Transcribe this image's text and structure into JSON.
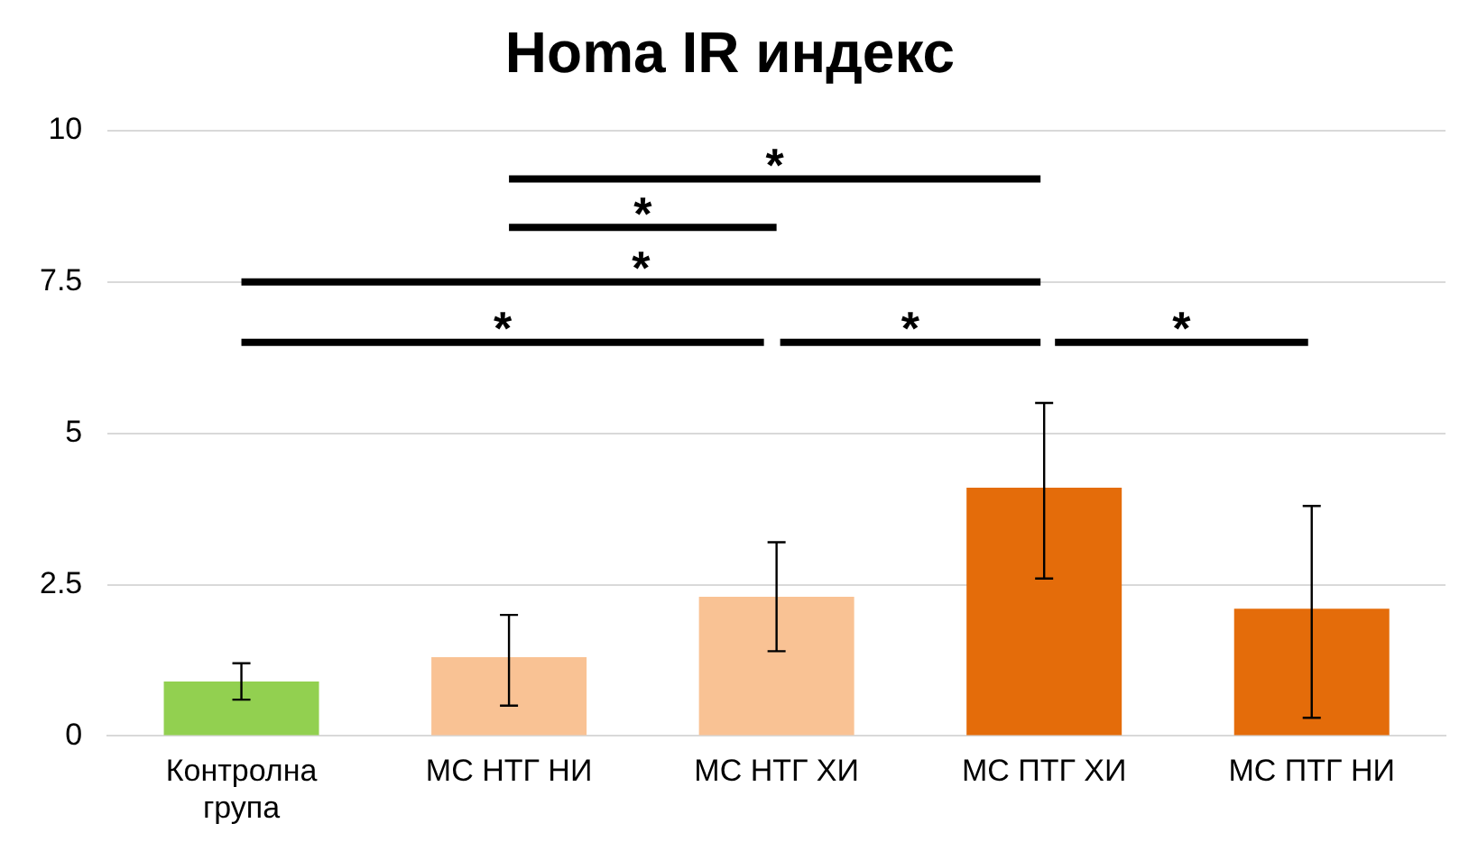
{
  "chart_data": {
    "type": "bar",
    "title": "Homa IR индекс",
    "categories": [
      "Контролна група",
      "МС НТГ НИ",
      "МС НТГ ХИ",
      "МС ПТГ ХИ",
      "МС ПТГ НИ"
    ],
    "values": [
      0.9,
      1.3,
      2.3,
      4.1,
      2.1
    ],
    "colors": [
      "#92d050",
      "#f9c294",
      "#f9c294",
      "#e46c0a",
      "#e46c0a"
    ],
    "errors": [
      [
        0.6,
        1.2
      ],
      [
        0.5,
        2.0
      ],
      [
        1.4,
        3.2
      ],
      [
        2.6,
        5.5
      ],
      [
        0.3,
        3.8
      ]
    ],
    "ylim": [
      0,
      10
    ],
    "yticks": [
      0,
      2.5,
      5,
      7.5,
      10
    ],
    "grid": "y",
    "annotations": [
      "*",
      "*",
      "*",
      "*",
      "*",
      "*"
    ]
  }
}
